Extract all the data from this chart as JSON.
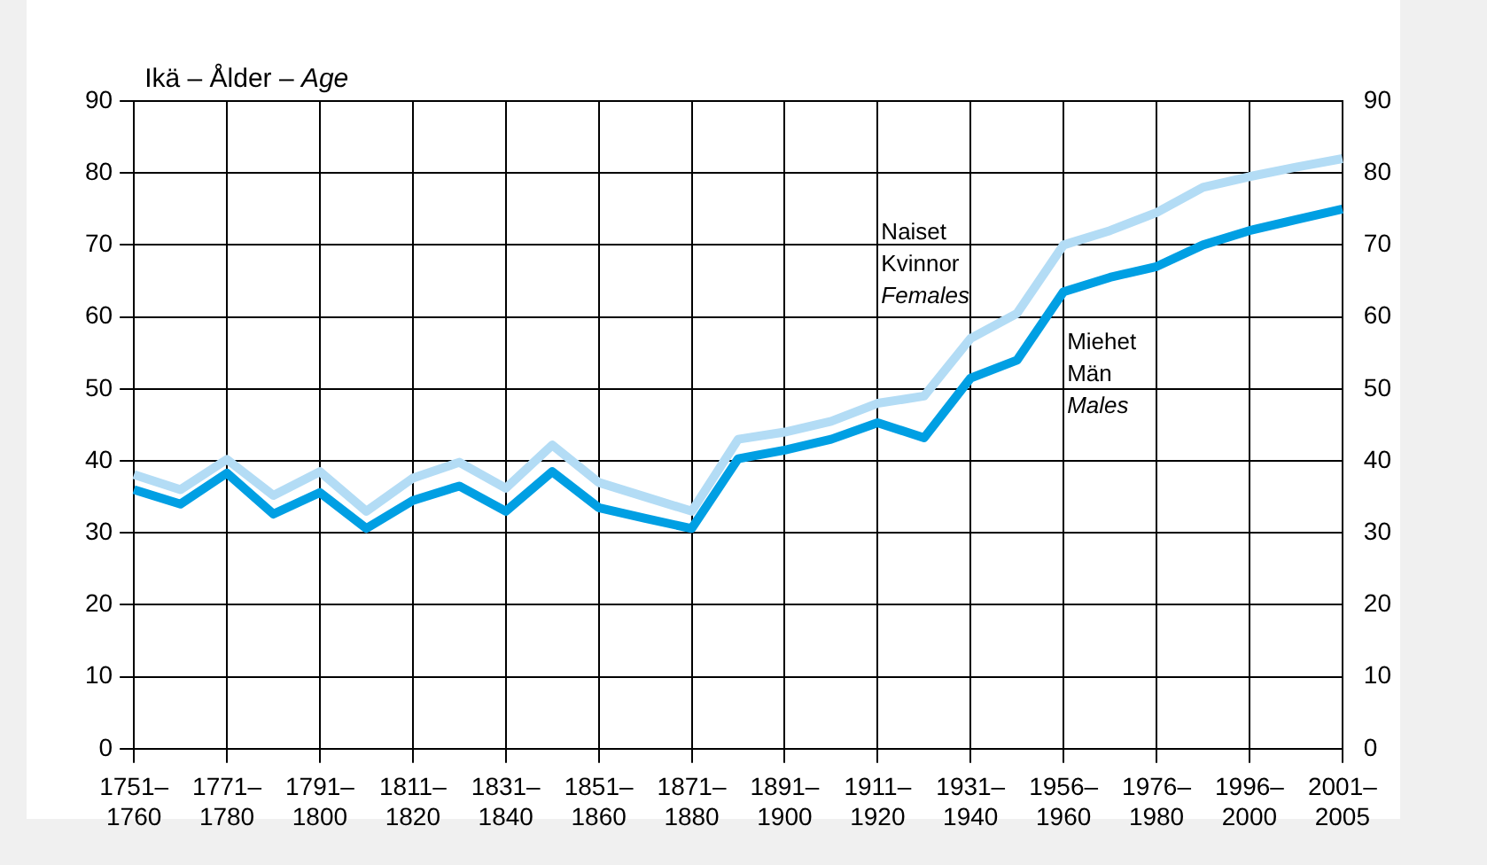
{
  "chart_data": {
    "type": "line",
    "ylabel": "Ikä – Ålder – Age",
    "categories": [
      "1751–1760",
      null,
      "1771–1780",
      null,
      "1791–1800",
      null,
      "1811–1820",
      null,
      "1831–1840",
      null,
      "1851–1860",
      null,
      "1871–1880",
      null,
      "1891–1900",
      null,
      "1911–1920",
      null,
      "1931–1940",
      null,
      "1956–1960",
      null,
      "1976–1980",
      null,
      "1996–2000",
      null,
      "2001–2005"
    ],
    "series": [
      {
        "name": "Naiset\nKvinnor\nFemales",
        "color": "#b3dcf5",
        "values": [
          38.1,
          36,
          40.2,
          35.2,
          38.5,
          33,
          37.6,
          39.8,
          36.2,
          42.2,
          37,
          35,
          33,
          43,
          44,
          45.5,
          48,
          49,
          57,
          60.5,
          70,
          72,
          74.5,
          78,
          79.5,
          80.8,
          82
        ]
      },
      {
        "name": "Miehet\nMän\nMales",
        "color": "#009fe3",
        "values": [
          36,
          34,
          38.3,
          32.6,
          35.6,
          30.6,
          34.5,
          36.5,
          33,
          38.5,
          33.5,
          32,
          30.6,
          40.3,
          41.5,
          43,
          45.3,
          43.2,
          51.5,
          54,
          63.5,
          65.5,
          67,
          70,
          72,
          73.5,
          75
        ]
      }
    ],
    "ylim": [
      0,
      90
    ],
    "yticks": [
      0,
      10,
      20,
      30,
      40,
      50,
      60,
      70,
      80,
      90
    ],
    "y2lim": [
      0,
      90
    ],
    "y2ticks": [
      0,
      10,
      20,
      30,
      40,
      50,
      60,
      70,
      80,
      90
    ],
    "grid": true,
    "legend": false,
    "marker": "none",
    "line_style": "solid"
  }
}
